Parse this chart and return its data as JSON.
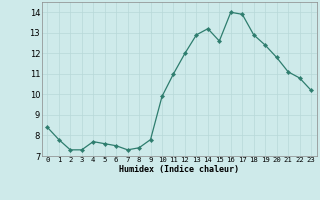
{
  "x": [
    0,
    1,
    2,
    3,
    4,
    5,
    6,
    7,
    8,
    9,
    10,
    11,
    12,
    13,
    14,
    15,
    16,
    17,
    18,
    19,
    20,
    21,
    22,
    23
  ],
  "y": [
    8.4,
    7.8,
    7.3,
    7.3,
    7.7,
    7.6,
    7.5,
    7.3,
    7.4,
    7.8,
    9.9,
    11.0,
    12.0,
    12.9,
    13.2,
    12.6,
    14.0,
    13.9,
    12.9,
    12.4,
    11.8,
    11.1,
    10.8,
    10.2
  ],
  "xlabel": "Humidex (Indice chaleur)",
  "ylim": [
    7,
    14.5
  ],
  "xlim": [
    -0.5,
    23.5
  ],
  "yticks": [
    7,
    8,
    9,
    10,
    11,
    12,
    13,
    14
  ],
  "xtick_labels": [
    "0",
    "1",
    "2",
    "3",
    "4",
    "5",
    "6",
    "7",
    "8",
    "9",
    "10",
    "11",
    "12",
    "13",
    "14",
    "15",
    "16",
    "17",
    "18",
    "19",
    "20",
    "21",
    "22",
    "23"
  ],
  "line_color": "#2e7d6e",
  "marker_color": "#2e7d6e",
  "bg_color": "#ceeaea",
  "grid_color": "#b8d8d8",
  "xlabel_fontsize": 6.0,
  "ytick_fontsize": 6.0,
  "xtick_fontsize": 5.2
}
